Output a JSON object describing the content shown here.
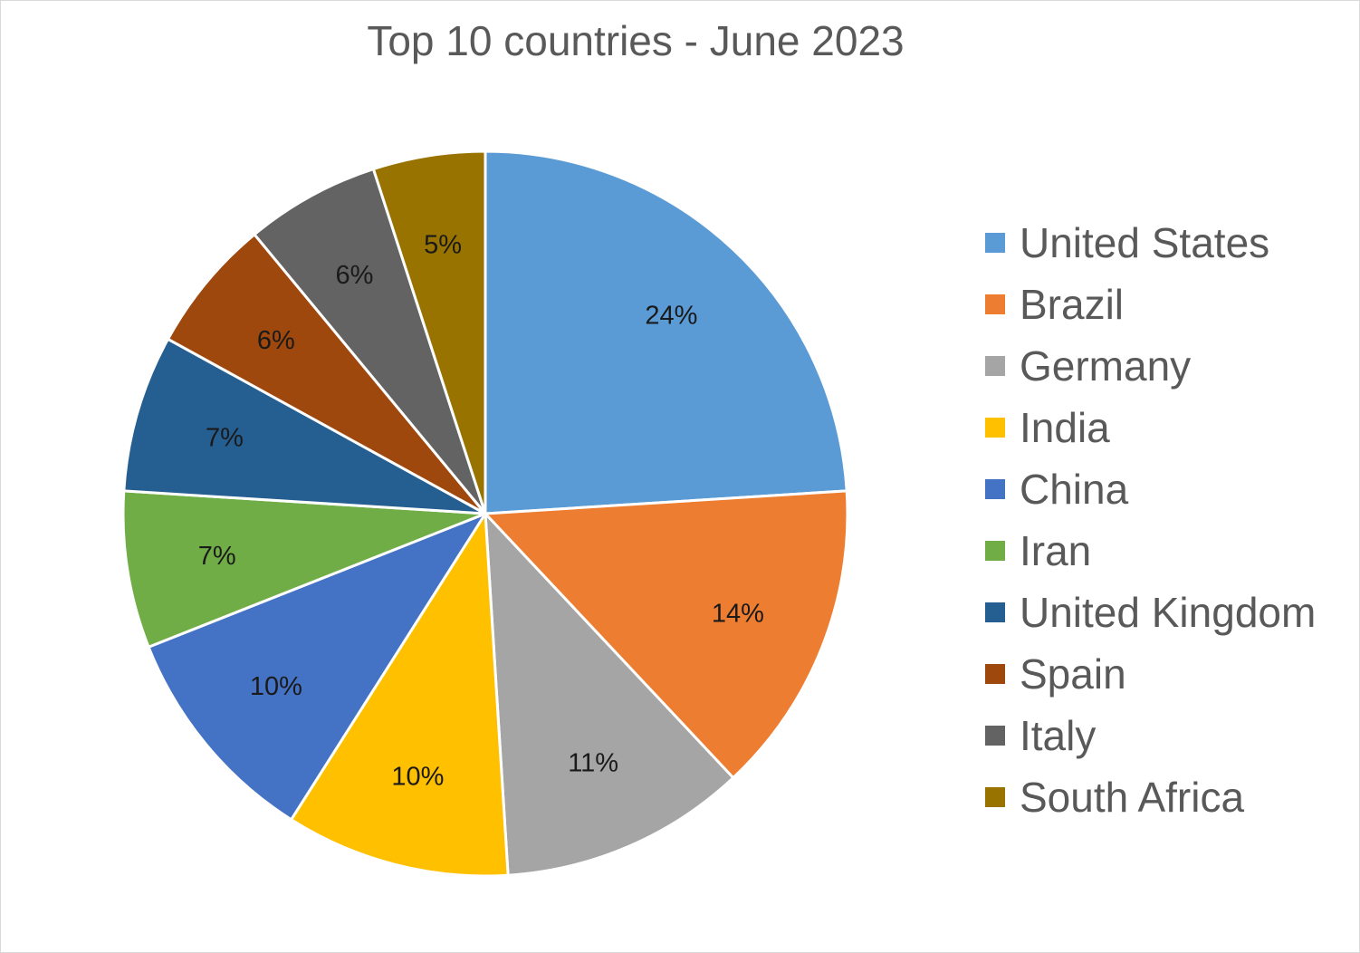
{
  "chart_data": {
    "type": "pie",
    "title": "Top 10 countries - June 2023",
    "legend_position": "right",
    "categories": [
      "United States",
      "Brazil",
      "Germany",
      "India",
      "China",
      "Iran",
      "United Kingdom",
      "Spain",
      "Italy",
      "South Africa"
    ],
    "values": [
      24,
      14,
      11,
      10,
      10,
      7,
      7,
      6,
      6,
      5
    ],
    "labels": [
      "24%",
      "14%",
      "11%",
      "10%",
      "10%",
      "7%",
      "7%",
      "6%",
      "6%",
      "5%"
    ],
    "colors": [
      "#5b9bd5",
      "#ed7d31",
      "#a5a5a5",
      "#ffc000",
      "#4472c4",
      "#70ad47",
      "#255e91",
      "#9e480e",
      "#636363",
      "#997300"
    ]
  }
}
